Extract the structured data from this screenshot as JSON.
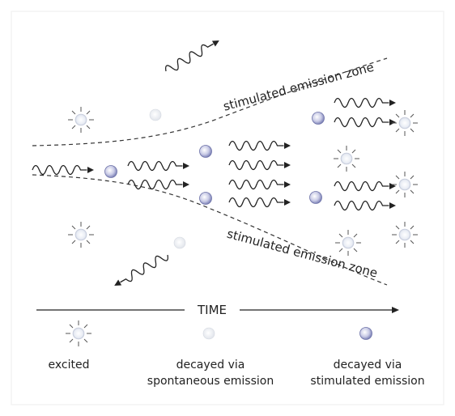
{
  "zone_labels": {
    "top": "stimulated emission zone",
    "bottom": "stimulated emission zone"
  },
  "time_label": "TIME",
  "legend": [
    {
      "lines": [
        "excited"
      ]
    },
    {
      "lines": [
        "decayed via",
        "spontaneous emission"
      ]
    },
    {
      "lines": [
        "decayed via",
        "stimulated emission"
      ]
    }
  ]
}
